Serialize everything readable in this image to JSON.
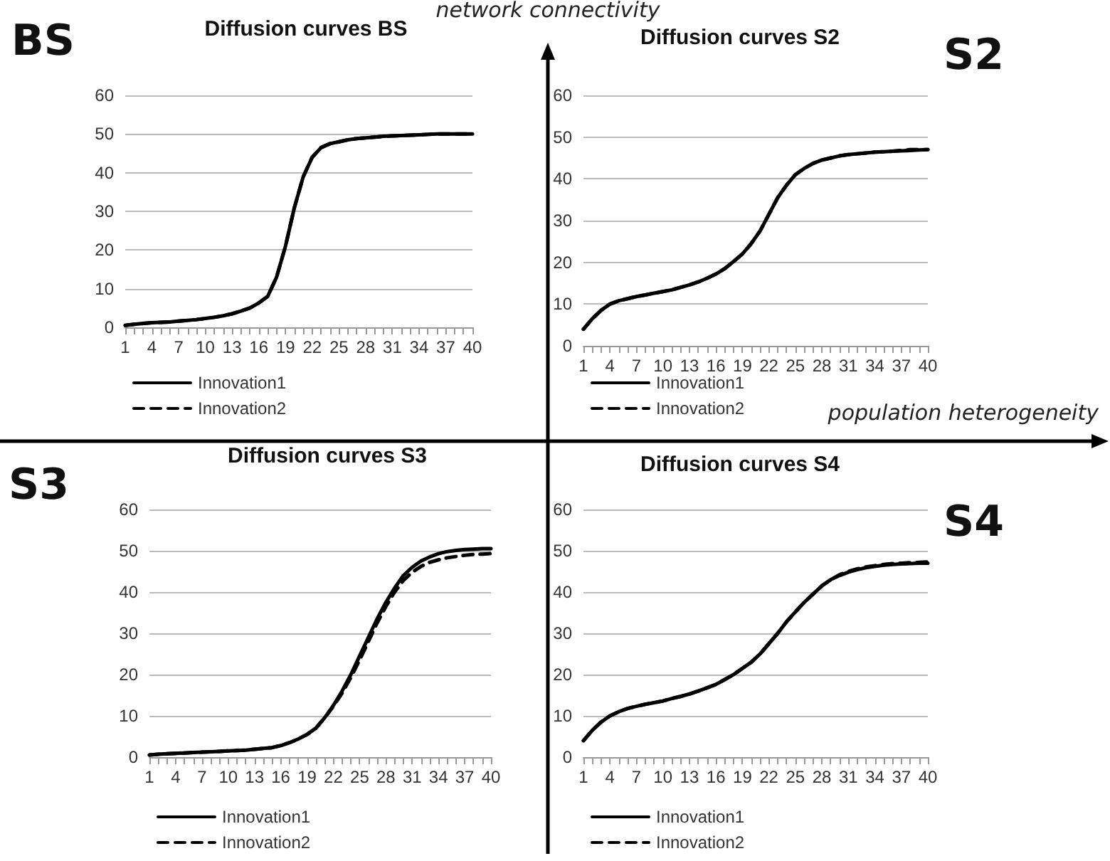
{
  "chart_data": [
    {
      "type": "line",
      "title": "Diffusion curves BS",
      "annotations": [
        "BS",
        "network connectivity"
      ],
      "categories": [
        "1",
        null,
        null,
        "4",
        null,
        null,
        "7",
        null,
        null,
        "10",
        null,
        null,
        "13",
        null,
        null,
        "16",
        null,
        null,
        "19",
        null,
        null,
        "22",
        null,
        null,
        "25",
        null,
        null,
        "28",
        null,
        null,
        "31",
        null,
        null,
        "34",
        null,
        null,
        "37",
        null,
        null,
        "40"
      ],
      "series": [
        {
          "name": "Innovation1",
          "color": "#000000",
          "line_style": "solid",
          "values": [
            0.5,
            0.8,
            1,
            1.2,
            1.3,
            1.4,
            1.6,
            1.8,
            2,
            2.3,
            2.6,
            3,
            3.5,
            4.2,
            5,
            6.3,
            8,
            13,
            21,
            31,
            39,
            44,
            46.5,
            47.5,
            48,
            48.5,
            48.8,
            49,
            49.2,
            49.4,
            49.5,
            49.6,
            49.7,
            49.8,
            49.9,
            50,
            50,
            50,
            50,
            50
          ]
        },
        {
          "name": "Innovation2",
          "color": "#000000",
          "line_style": "dashed",
          "values": [
            0.5,
            0.8,
            1,
            1.2,
            1.3,
            1.4,
            1.6,
            1.8,
            2,
            2.3,
            2.6,
            3,
            3.5,
            4.2,
            5,
            6.3,
            8,
            13,
            21,
            31,
            39,
            44,
            46.5,
            47.5,
            48,
            48.5,
            48.8,
            49,
            49.2,
            49.4,
            49.5,
            49.6,
            49.7,
            49.8,
            49.9,
            50,
            50,
            50,
            50,
            50
          ]
        }
      ],
      "ylim": [
        0,
        60
      ],
      "yticks": [
        0,
        10,
        20,
        30,
        40,
        50,
        60
      ],
      "grid": "y",
      "legend": "bottom",
      "marker": "none"
    },
    {
      "type": "line",
      "title": "Diffusion curves S2",
      "annotations": [
        "S2",
        "population heterogeneity"
      ],
      "categories": [
        "1",
        null,
        null,
        "4",
        null,
        null,
        "7",
        null,
        null,
        "10",
        null,
        null,
        "13",
        null,
        null,
        "16",
        null,
        null,
        "19",
        null,
        null,
        "22",
        null,
        null,
        "25",
        null,
        null,
        "28",
        null,
        null,
        "31",
        null,
        null,
        "34",
        null,
        null,
        "37",
        null,
        null,
        "40"
      ],
      "series": [
        {
          "name": "Innovation1",
          "color": "#000000",
          "line_style": "solid",
          "values": [
            4,
            6.5,
            8.5,
            10,
            10.8,
            11.3,
            11.8,
            12.2,
            12.6,
            13,
            13.4,
            14,
            14.6,
            15.3,
            16.2,
            17.2,
            18.5,
            20.2,
            22,
            24.5,
            27.5,
            31.5,
            35.5,
            38.5,
            41,
            42.5,
            43.7,
            44.5,
            45,
            45.5,
            45.8,
            46,
            46.2,
            46.4,
            46.5,
            46.6,
            46.7,
            46.8,
            46.9,
            47
          ]
        },
        {
          "name": "Innovation2",
          "color": "#000000",
          "line_style": "dashed",
          "values": [
            4,
            6.5,
            8.5,
            10,
            10.8,
            11.3,
            11.8,
            12.2,
            12.6,
            13,
            13.4,
            14,
            14.6,
            15.3,
            16.2,
            17.2,
            18.5,
            20.2,
            22,
            24.5,
            27.5,
            31.5,
            35.5,
            38.5,
            41,
            42.5,
            43.7,
            44.5,
            45,
            45.5,
            45.8,
            46,
            46.2,
            46.4,
            46.5,
            46.6,
            46.8,
            47,
            47,
            47
          ]
        }
      ],
      "ylim": [
        0,
        60
      ],
      "yticks": [
        0,
        10,
        20,
        30,
        40,
        50,
        60
      ],
      "grid": "y",
      "legend": "bottom",
      "marker": "none"
    },
    {
      "type": "line",
      "title": "Diffusion curves S3",
      "annotations": [
        "S3"
      ],
      "categories": [
        "1",
        null,
        null,
        "4",
        null,
        null,
        "7",
        null,
        null,
        "10",
        null,
        null,
        "13",
        null,
        null,
        "16",
        null,
        null,
        "19",
        null,
        null,
        "22",
        null,
        null,
        "25",
        null,
        null,
        "28",
        null,
        null,
        "31",
        null,
        null,
        "34",
        null,
        null,
        "37",
        null,
        null,
        "40"
      ],
      "series": [
        {
          "name": "Innovation1",
          "color": "#000000",
          "line_style": "solid",
          "values": [
            0.5,
            0.7,
            0.8,
            0.9,
            1,
            1.1,
            1.2,
            1.3,
            1.4,
            1.5,
            1.6,
            1.7,
            1.9,
            2.1,
            2.3,
            2.8,
            3.5,
            4.4,
            5.5,
            7,
            9.5,
            12.5,
            16,
            20,
            24.5,
            29,
            33.5,
            37.5,
            41,
            44,
            46,
            47.5,
            48.5,
            49.3,
            49.8,
            50.1,
            50.3,
            50.4,
            50.5,
            50.5
          ]
        },
        {
          "name": "Innovation2",
          "color": "#000000",
          "line_style": "dashed",
          "values": [
            0.5,
            0.7,
            0.8,
            0.9,
            1,
            1.1,
            1.2,
            1.3,
            1.4,
            1.5,
            1.6,
            1.7,
            1.9,
            2.1,
            2.3,
            2.8,
            3.5,
            4.4,
            5.5,
            7,
            9.5,
            12.3,
            15.5,
            19.3,
            23.5,
            28,
            32.5,
            36.5,
            40,
            42.8,
            44.8,
            46.2,
            47.2,
            47.8,
            48.3,
            48.6,
            48.9,
            49.1,
            49.2,
            49.3
          ]
        }
      ],
      "ylim": [
        0,
        60
      ],
      "yticks": [
        0,
        10,
        20,
        30,
        40,
        50,
        60
      ],
      "grid": "y",
      "legend": "bottom",
      "marker": "none"
    },
    {
      "type": "line",
      "title": "Diffusion curves S4",
      "annotations": [
        "S4"
      ],
      "categories": [
        "1",
        null,
        null,
        "4",
        null,
        null,
        "7",
        null,
        null,
        "10",
        null,
        null,
        "13",
        null,
        null,
        "16",
        null,
        null,
        "19",
        null,
        null,
        "22",
        null,
        null,
        "25",
        null,
        null,
        "28",
        null,
        null,
        "31",
        null,
        null,
        "34",
        null,
        null,
        "37",
        null,
        null,
        "40"
      ],
      "series": [
        {
          "name": "Innovation1",
          "color": "#000000",
          "line_style": "solid",
          "values": [
            4,
            6.5,
            8.5,
            10,
            11,
            11.8,
            12.3,
            12.8,
            13.2,
            13.6,
            14.2,
            14.7,
            15.3,
            16,
            16.8,
            17.6,
            18.8,
            20,
            21.5,
            23,
            25,
            27.5,
            30,
            32.8,
            35.2,
            37.5,
            39.5,
            41.5,
            43,
            44,
            44.8,
            45.4,
            45.9,
            46.2,
            46.5,
            46.7,
            46.8,
            46.9,
            47,
            47
          ]
        },
        {
          "name": "Innovation2",
          "color": "#000000",
          "line_style": "dashed",
          "values": [
            4,
            6.5,
            8.5,
            10,
            11,
            11.8,
            12.3,
            12.8,
            13.2,
            13.6,
            14.2,
            14.7,
            15.3,
            16,
            16.8,
            17.6,
            18.8,
            20,
            21.5,
            23,
            25,
            27.5,
            30,
            32.8,
            35.2,
            37.5,
            39.5,
            41.5,
            43,
            44.2,
            45,
            45.6,
            46.1,
            46.4,
            46.7,
            46.9,
            47,
            47.1,
            47.2,
            47.3
          ]
        }
      ],
      "ylim": [
        0,
        60
      ],
      "yticks": [
        0,
        10,
        20,
        30,
        40,
        50,
        60
      ],
      "grid": "y",
      "legend": "bottom",
      "marker": "none"
    }
  ]
}
